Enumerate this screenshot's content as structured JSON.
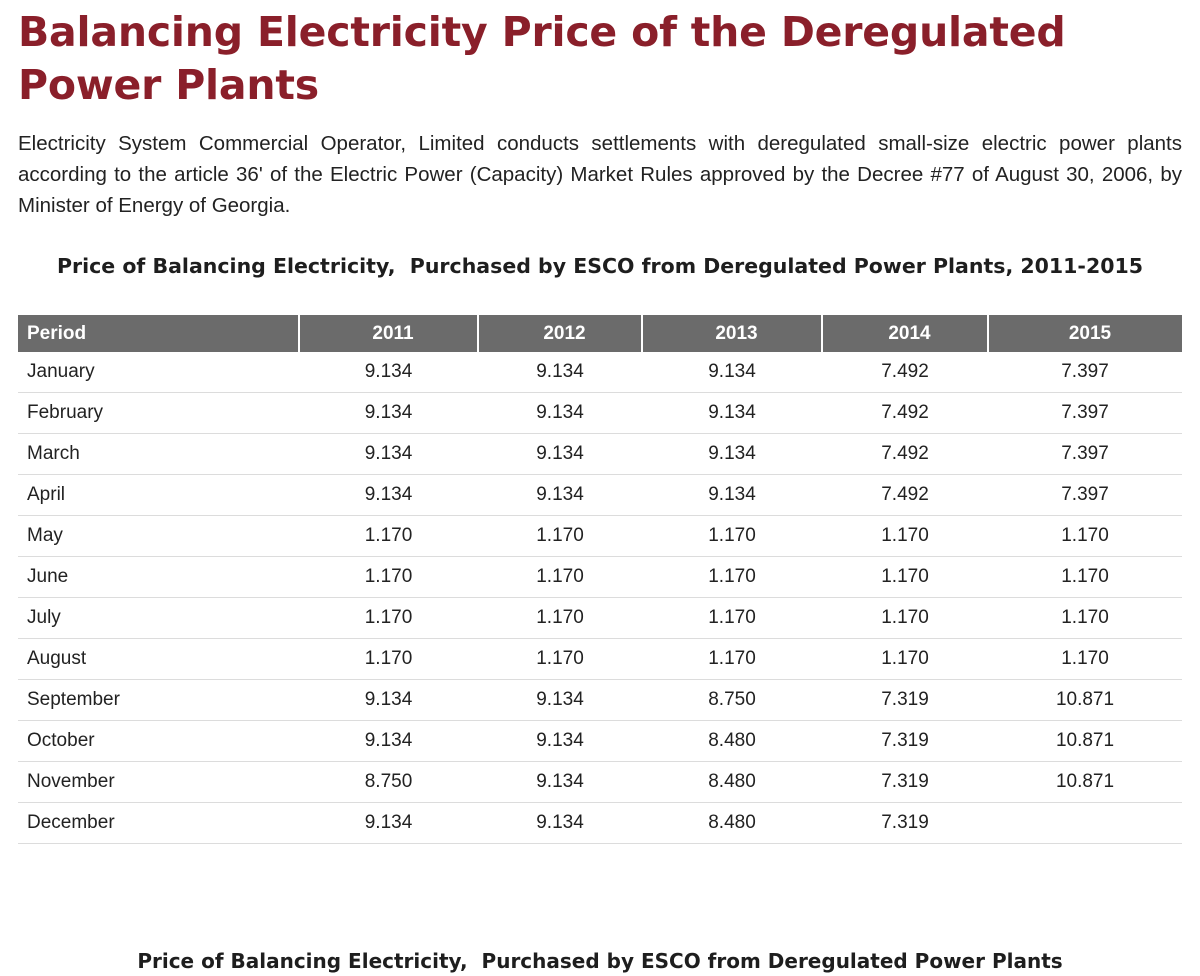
{
  "page": {
    "title": "Balancing Electricity Price of the Deregulated Power Plants",
    "intro": "Electricity System Commercial Operator, Limited conducts settlements with deregulated small-size electric power plants according to the article 36' of the Electric Power (Capacity) Market Rules approved by the Decree #77 of August 30, 2006, by Minister of Energy of Georgia.",
    "table_caption": "Price of Balancing Electricity,  Purchased by ESCO from Deregulated Power Plants, 2011-2015",
    "second_caption": "Price of Balancing Electricity,  Purchased by ESCO from Deregulated Power Plants"
  },
  "table": {
    "headers": [
      "Period",
      "2011",
      "2012",
      "2013",
      "2014",
      "2015"
    ],
    "rows": [
      [
        "January",
        "9.134",
        "9.134",
        "9.134",
        "7.492",
        "7.397"
      ],
      [
        "February",
        "9.134",
        "9.134",
        "9.134",
        "7.492",
        "7.397"
      ],
      [
        "March",
        "9.134",
        "9.134",
        "9.134",
        "7.492",
        "7.397"
      ],
      [
        "April",
        "9.134",
        "9.134",
        "9.134",
        "7.492",
        "7.397"
      ],
      [
        "May",
        "1.170",
        "1.170",
        "1.170",
        "1.170",
        "1.170"
      ],
      [
        "June",
        "1.170",
        "1.170",
        "1.170",
        "1.170",
        "1.170"
      ],
      [
        "July",
        "1.170",
        "1.170",
        "1.170",
        "1.170",
        "1.170"
      ],
      [
        "August",
        "1.170",
        "1.170",
        "1.170",
        "1.170",
        "1.170"
      ],
      [
        "September",
        "9.134",
        "9.134",
        "8.750",
        "7.319",
        "10.871"
      ],
      [
        "October",
        "9.134",
        "9.134",
        "8.480",
        "7.319",
        "10.871"
      ],
      [
        "November",
        "8.750",
        "9.134",
        "8.480",
        "7.319",
        "10.871"
      ],
      [
        "December",
        "9.134",
        "9.134",
        "8.480",
        "7.319",
        ""
      ]
    ]
  },
  "colors": {
    "title": "#8a1f2a",
    "header_bg": "#6b6b6b",
    "header_text": "#ffffff",
    "row_divider": "#dcdcdc"
  }
}
